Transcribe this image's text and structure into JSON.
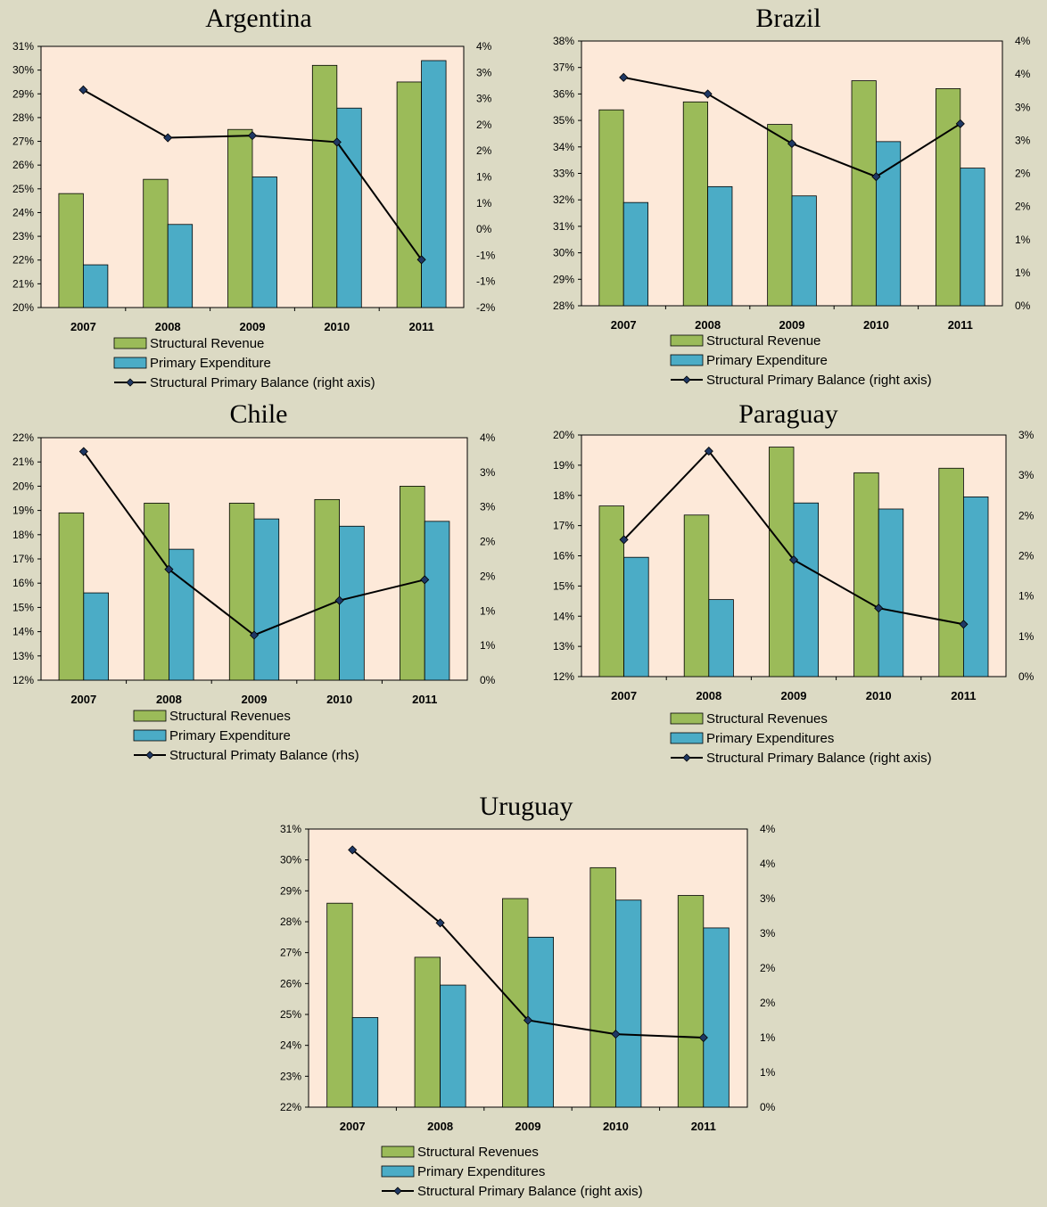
{
  "colors": {
    "revenue": "#9bbb59",
    "expenditure": "#4bacc6",
    "balance": "#000000",
    "marker": "#1f3864",
    "plot_bg": "#fde9d9"
  },
  "chart_data": [
    {
      "type": "bar",
      "title": "Argentina",
      "categories": [
        "2007",
        "2008",
        "2009",
        "2010",
        "2011"
      ],
      "series": [
        {
          "name": "Structural Revenue",
          "axis": "left",
          "values": [
            24.8,
            25.4,
            27.5,
            30.2,
            29.5
          ]
        },
        {
          "name": "Primary Expenditure",
          "axis": "left",
          "values": [
            21.8,
            23.5,
            25.5,
            28.4,
            30.4
          ]
        },
        {
          "name": "Structural Primary Balance (right axis)",
          "axis": "right",
          "kind": "line",
          "values": [
            3.0,
            1.9,
            1.95,
            1.8,
            -0.9
          ]
        }
      ],
      "ylim": [
        20,
        31
      ],
      "y2lim": [
        -2,
        4
      ],
      "y_ticks": [
        "20%",
        "21%",
        "22%",
        "23%",
        "24%",
        "25%",
        "26%",
        "27%",
        "28%",
        "29%",
        "30%",
        "31%"
      ],
      "y2_ticks": [
        "-2%",
        "-1%",
        "-1%",
        "0%",
        "1%",
        "1%",
        "2%",
        "2%",
        "3%",
        "3%",
        "4%"
      ]
    },
    {
      "type": "bar",
      "title": "Brazil",
      "categories": [
        "2007",
        "2008",
        "2009",
        "2010",
        "2011"
      ],
      "series": [
        {
          "name": "Structural Revenue",
          "axis": "left",
          "values": [
            35.4,
            35.7,
            34.85,
            36.5,
            36.2
          ]
        },
        {
          "name": "Primary Expenditure",
          "axis": "left",
          "values": [
            31.9,
            32.5,
            32.15,
            34.2,
            33.2
          ]
        },
        {
          "name": "Structural Primary Balance (right axis)",
          "axis": "right",
          "kind": "line",
          "values": [
            3.45,
            3.2,
            2.45,
            1.95,
            2.75
          ]
        }
      ],
      "ylim": [
        28,
        38
      ],
      "y2lim": [
        0,
        4
      ],
      "y_ticks": [
        "28%",
        "29%",
        "30%",
        "31%",
        "32%",
        "33%",
        "34%",
        "35%",
        "36%",
        "37%",
        "38%"
      ],
      "y2_ticks": [
        "0%",
        "1%",
        "1%",
        "2%",
        "2%",
        "3%",
        "3%",
        "4%",
        "4%"
      ]
    },
    {
      "type": "bar",
      "title": "Chile",
      "categories": [
        "2007",
        "2008",
        "2009",
        "2010",
        "2011"
      ],
      "series": [
        {
          "name": "Structural Revenues",
          "axis": "left",
          "values": [
            18.9,
            19.3,
            19.3,
            19.45,
            20.0
          ]
        },
        {
          "name": "Primary Expenditure",
          "axis": "left",
          "values": [
            15.6,
            17.4,
            18.65,
            18.35,
            18.55
          ]
        },
        {
          "name": "Structural Primaty Balance (rhs)",
          "axis": "right",
          "kind": "line",
          "values": [
            3.3,
            1.6,
            0.65,
            1.15,
            1.45
          ]
        }
      ],
      "ylim": [
        12,
        22
      ],
      "y2lim": [
        0,
        3.5
      ],
      "y_ticks": [
        "12%",
        "13%",
        "14%",
        "15%",
        "16%",
        "17%",
        "18%",
        "19%",
        "20%",
        "21%",
        "22%"
      ],
      "y2_ticks": [
        "0%",
        "1%",
        "1%",
        "2%",
        "2%",
        "3%",
        "3%",
        "4%"
      ]
    },
    {
      "type": "bar",
      "title": "Paraguay",
      "categories": [
        "2007",
        "2008",
        "2009",
        "2010",
        "2011"
      ],
      "series": [
        {
          "name": "Structural Revenues",
          "axis": "left",
          "values": [
            17.65,
            17.35,
            19.6,
            18.75,
            18.9
          ]
        },
        {
          "name": "Primary Expenditures",
          "axis": "left",
          "values": [
            15.95,
            14.55,
            17.75,
            17.55,
            17.95
          ]
        },
        {
          "name": "Structural Primary Balance (right axis)",
          "axis": "right",
          "kind": "line",
          "values": [
            1.7,
            2.8,
            1.45,
            0.85,
            0.65
          ]
        }
      ],
      "ylim": [
        12,
        20
      ],
      "y2lim": [
        0,
        3
      ],
      "y_ticks": [
        "12%",
        "13%",
        "14%",
        "15%",
        "16%",
        "17%",
        "18%",
        "19%",
        "20%"
      ],
      "y2_ticks": [
        "0%",
        "1%",
        "1%",
        "2%",
        "2%",
        "3%",
        "3%"
      ]
    },
    {
      "type": "bar",
      "title": "Uruguay",
      "categories": [
        "2007",
        "2008",
        "2009",
        "2010",
        "2011"
      ],
      "series": [
        {
          "name": "Structural Revenues",
          "axis": "left",
          "values": [
            28.6,
            26.85,
            28.75,
            29.75,
            28.85
          ]
        },
        {
          "name": "Primary Expenditures",
          "axis": "left",
          "values": [
            24.9,
            25.95,
            27.5,
            28.7,
            27.8
          ]
        },
        {
          "name": "Structural Primary Balance (right axis)",
          "axis": "right",
          "kind": "line",
          "values": [
            3.7,
            2.65,
            1.25,
            1.05,
            1.0
          ]
        }
      ],
      "ylim": [
        22,
        31
      ],
      "y2lim": [
        0,
        4
      ],
      "y_ticks": [
        "22%",
        "23%",
        "24%",
        "25%",
        "26%",
        "27%",
        "28%",
        "29%",
        "30%",
        "31%"
      ],
      "y2_ticks": [
        "0%",
        "1%",
        "1%",
        "2%",
        "2%",
        "3%",
        "3%",
        "4%",
        "4%"
      ]
    }
  ]
}
